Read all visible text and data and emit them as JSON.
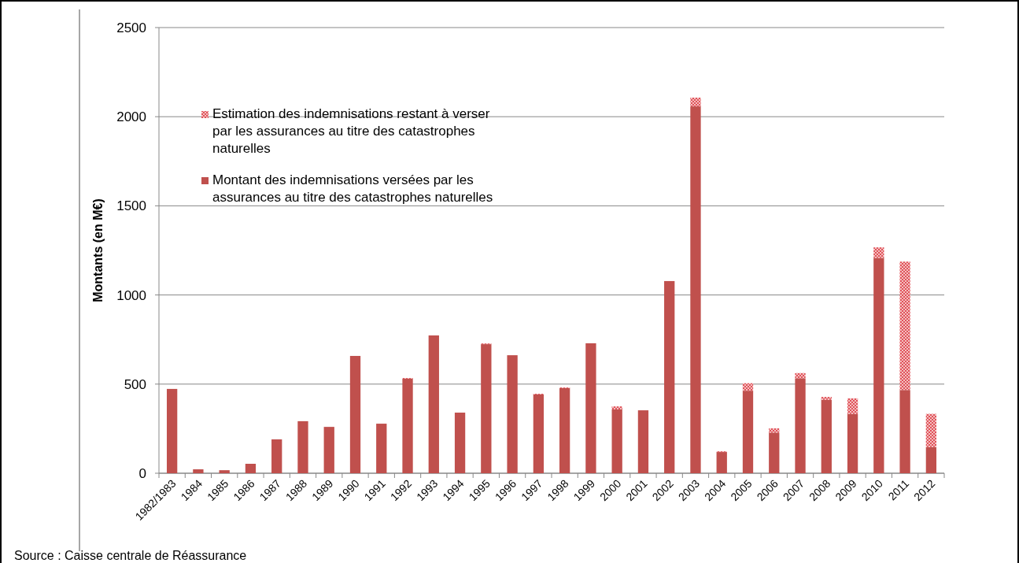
{
  "chart_data": {
    "type": "bar",
    "stacked": true,
    "ylabel": "Montants (en M€)",
    "categories": [
      "1982/1983",
      "1984",
      "1985",
      "1986",
      "1987",
      "1988",
      "1989",
      "1990",
      "1991",
      "1992",
      "1993",
      "1994",
      "1995",
      "1996",
      "1997",
      "1998",
      "1999",
      "2000",
      "2001",
      "2002",
      "2003",
      "2004",
      "2005",
      "2006",
      "2007",
      "2008",
      "2009",
      "2010",
      "2011",
      "2012"
    ],
    "series": [
      {
        "name": "Montant des indemnisations versées par les assurances au titre des catastrophes naturelles",
        "color": "#c0504d",
        "values": [
          473,
          22,
          17,
          53,
          190,
          292,
          260,
          658,
          278,
          530,
          773,
          340,
          724,
          662,
          442,
          477,
          729,
          358,
          353,
          1078,
          2058,
          119,
          463,
          228,
          533,
          412,
          333,
          1208,
          467,
          147
        ]
      },
      {
        "name": "Estimation des indemnisations restant à verser par les assurances au titre des catastrophes naturelles",
        "color": "#e0525a",
        "values": [
          0,
          0,
          0,
          0,
          0,
          0,
          0,
          0,
          0,
          4,
          0,
          0,
          4,
          0,
          4,
          4,
          0,
          17,
          0,
          0,
          49,
          4,
          42,
          24,
          29,
          16,
          87,
          59,
          720,
          186
        ]
      }
    ],
    "ylim": [
      0,
      2500
    ],
    "yticks": [
      0,
      500,
      1000,
      1500,
      2000,
      2500
    ],
    "grid": "y",
    "legend": "top left",
    "annotations": [
      "Source : Caisse centrale de Réassurance"
    ]
  }
}
